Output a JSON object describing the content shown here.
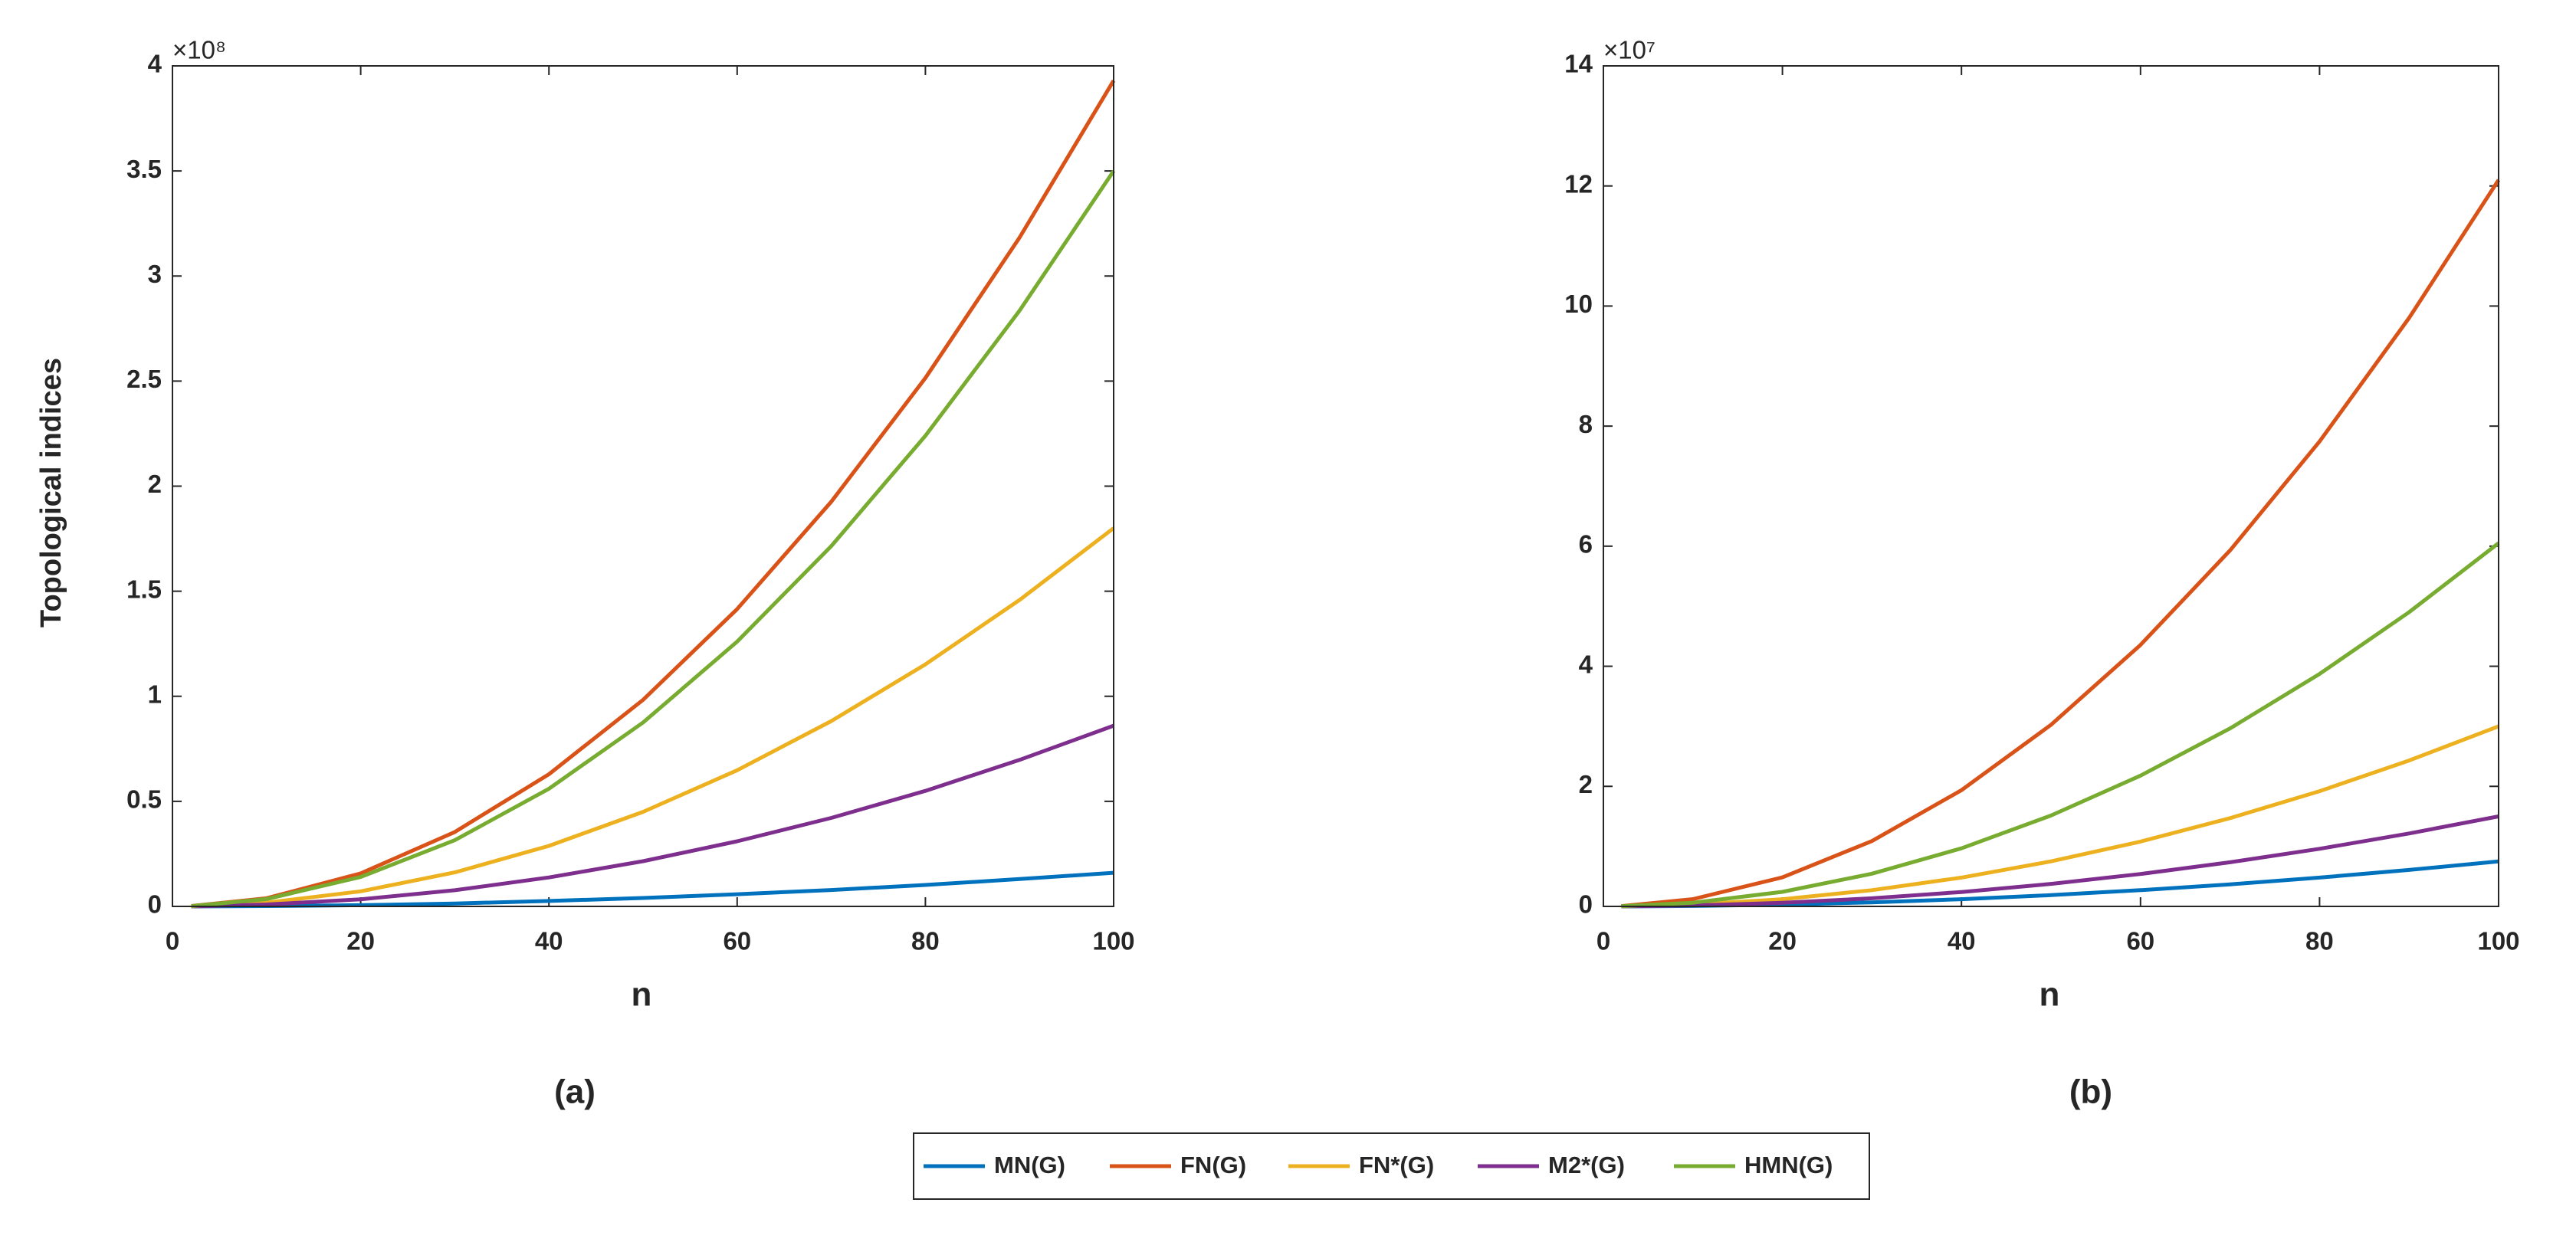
{
  "chart_data": [
    {
      "type": "line",
      "panel_label": "(a)",
      "xlabel": "n",
      "ylabel": "Topological indices",
      "y_offset_text": "×10⁸",
      "x": [
        2,
        10,
        20,
        30,
        40,
        50,
        60,
        70,
        80,
        90,
        100
      ],
      "xlim": [
        0,
        100
      ],
      "xticks": [
        0,
        20,
        40,
        60,
        80,
        100
      ],
      "ylim": [
        0,
        4
      ],
      "yticks": [
        0,
        0.5,
        1,
        1.5,
        2,
        2.5,
        3,
        3.5,
        4
      ],
      "series": [
        {
          "name": "MN(G)",
          "color": "#0072BD",
          "values": [
            0,
            0.002,
            0.006,
            0.014,
            0.026,
            0.04,
            0.058,
            0.078,
            0.102,
            0.13,
            0.16
          ]
        },
        {
          "name": "FN(G)",
          "color": "#D95319",
          "values": [
            0.002,
            0.039,
            0.157,
            0.354,
            0.629,
            0.983,
            1.415,
            1.926,
            2.515,
            3.183,
            3.93
          ]
        },
        {
          "name": "FN*(G)",
          "color": "#EDB120",
          "values": [
            0.001,
            0.018,
            0.072,
            0.162,
            0.288,
            0.45,
            0.648,
            0.882,
            1.152,
            1.458,
            1.8
          ]
        },
        {
          "name": "M2*(G)",
          "color": "#7E2F8E",
          "values": [
            0,
            0.009,
            0.034,
            0.077,
            0.138,
            0.215,
            0.31,
            0.421,
            0.55,
            0.697,
            0.86
          ]
        },
        {
          "name": "HMN(G)",
          "color": "#77AC30",
          "values": [
            0.001,
            0.035,
            0.14,
            0.315,
            0.56,
            0.875,
            1.26,
            1.715,
            2.24,
            2.835,
            3.5
          ]
        }
      ]
    },
    {
      "type": "line",
      "panel_label": "(b)",
      "xlabel": "n",
      "y_offset_text": "×10⁷",
      "x": [
        2,
        10,
        20,
        30,
        40,
        50,
        60,
        70,
        80,
        90,
        100
      ],
      "xlim": [
        0,
        100
      ],
      "xticks": [
        0,
        20,
        40,
        60,
        80,
        100
      ],
      "ylim": [
        0,
        14
      ],
      "yticks": [
        0,
        2,
        4,
        6,
        8,
        10,
        12,
        14
      ],
      "series": [
        {
          "color": "#0072BD",
          "values": [
            0,
            0.008,
            0.03,
            0.068,
            0.12,
            0.188,
            0.27,
            0.368,
            0.48,
            0.608,
            0.75
          ]
        },
        {
          "color": "#D95319",
          "values": [
            0.005,
            0.121,
            0.484,
            1.089,
            1.936,
            3.025,
            4.356,
            5.929,
            7.744,
            9.801,
            12.1
          ]
        },
        {
          "color": "#EDB120",
          "values": [
            0.001,
            0.03,
            0.12,
            0.27,
            0.48,
            0.75,
            1.08,
            1.47,
            1.92,
            2.43,
            3.0
          ]
        },
        {
          "color": "#7E2F8E",
          "values": [
            0.001,
            0.015,
            0.06,
            0.135,
            0.24,
            0.375,
            0.54,
            0.735,
            0.96,
            1.215,
            1.5
          ]
        },
        {
          "color": "#77AC30",
          "values": [
            0.002,
            0.061,
            0.242,
            0.545,
            0.968,
            1.513,
            2.178,
            2.965,
            3.872,
            4.901,
            6.05
          ]
        }
      ]
    }
  ]
}
